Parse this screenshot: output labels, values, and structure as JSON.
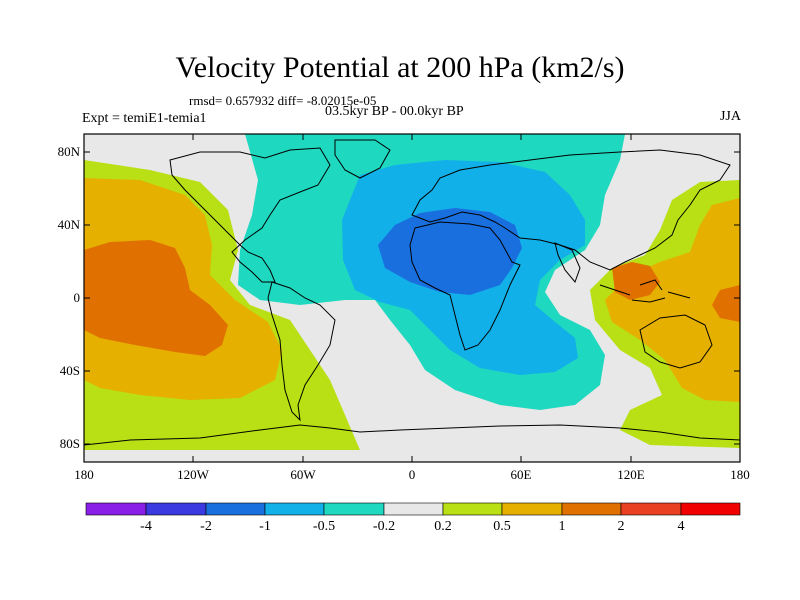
{
  "title": "Velocity Potential at 200 hPa (km2/s)",
  "stats": "rmsd= 0.657932 diff= -8.02015e-05",
  "experiment": "Expt = temiE1-temia1",
  "period": "03.5kyr BP - 00.0kyr BP",
  "season": "JJA",
  "map": {
    "projection": "cylindrical equidistant",
    "lon_range": [
      -180,
      180
    ],
    "lat_range": [
      -90,
      90
    ],
    "y_tick_labels": [
      "80N",
      "40N",
      "0",
      "40S",
      "80S"
    ],
    "x_tick_labels": [
      "180",
      "120W",
      "60W",
      "0",
      "60E",
      "120E",
      "180"
    ]
  },
  "colorbar": {
    "labels": [
      "-4",
      "-2",
      "-1",
      "-0.5",
      "-0.2",
      "0.2",
      "0.5",
      "1",
      "2",
      "4"
    ],
    "colors": [
      "#8a20e8",
      "#3a3ae0",
      "#1a6fdf",
      "#12b0e8",
      "#1fd8c0",
      "#e8e8e8",
      "#b8e014",
      "#e6b000",
      "#e07000",
      "#e84020",
      "#f00000"
    ]
  }
}
